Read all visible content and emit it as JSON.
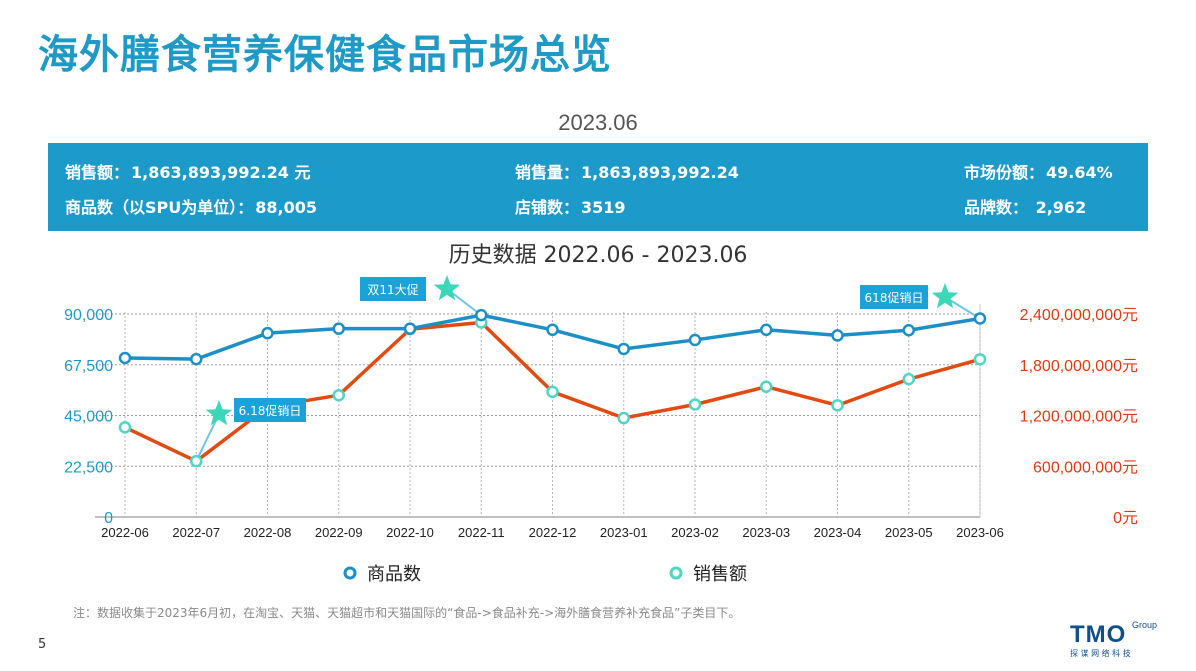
{
  "page": {
    "title": "海外膳食营养保健食品市场总览",
    "period": "2023.06",
    "stats": [
      {
        "label": "销售额：",
        "value": "1,863,893,992.24  元"
      },
      {
        "label": "销售量：",
        "value": "1,863,893,992.24"
      },
      {
        "label": "市场份额：",
        "value": "49.64%"
      },
      {
        "label": "商品数（以SPU为单位）：",
        "value": "88,005"
      },
      {
        "label": "店铺数：",
        "value": "3519"
      },
      {
        "label": "品牌数：",
        "value": " 2,962"
      }
    ],
    "footnote": "注：数据收集于2023年6月初，在淘宝、天猫、天猫超市和天猫国际的“食品->食品补充->海外膳食营养补充食品”子类目下。",
    "page_number": "5",
    "logo": {
      "text": "TMO",
      "sub": "Group",
      "tagline": "探 谋 网 络 科 技"
    }
  },
  "colors": {
    "title": "#1f9ac6",
    "stats_bg": "#1c9ac9",
    "product_series": "#1d8fc8",
    "sales_series": "#e24a12",
    "sales_marker": "#4fd6c0",
    "left_axis": "#1f9ac6",
    "right_axis": "#e03a12",
    "callout_bg": "#1aa2d9",
    "star": "#3ad8b8"
  },
  "chart_data": {
    "type": "line",
    "title": "历史数据 2022.06 - 2023.06",
    "categories": [
      "2022-06",
      "2022-07",
      "2022-08",
      "2022-09",
      "2022-10",
      "2022-11",
      "2022-12",
      "2023-01",
      "2023-02",
      "2023-03",
      "2023-04",
      "2023-05",
      "2023-06"
    ],
    "series": [
      {
        "name": "商品数",
        "axis": "left",
        "values": [
          70500,
          70000,
          81500,
          83500,
          83500,
          89500,
          83000,
          74500,
          78500,
          83000,
          80500,
          82800,
          88000
        ]
      },
      {
        "name": "销售额",
        "axis": "right",
        "values": [
          1060000000,
          660000000,
          1300000000,
          1440000000,
          2220000000,
          2300000000,
          1480000000,
          1170000000,
          1330000000,
          1540000000,
          1320000000,
          1630000000,
          1864000000
        ]
      }
    ],
    "ylim_left": [
      0,
      90000
    ],
    "yticks_left": [
      "0",
      "22,500",
      "45,000",
      "67,500",
      "90,000"
    ],
    "ylim_right": [
      0,
      2400000000
    ],
    "yticks_right": [
      "0元",
      "600,000,000元",
      "1,200,000,000元",
      "1,800,000,000元",
      "2,400,000,000元"
    ],
    "grid": true,
    "legend": "bottom",
    "annotations": [
      {
        "text": "双11大促",
        "category": "2022-11"
      },
      {
        "text": "6.18促销日",
        "category": "2022-07"
      },
      {
        "text": "618促销日",
        "category": "2023-06"
      }
    ]
  }
}
